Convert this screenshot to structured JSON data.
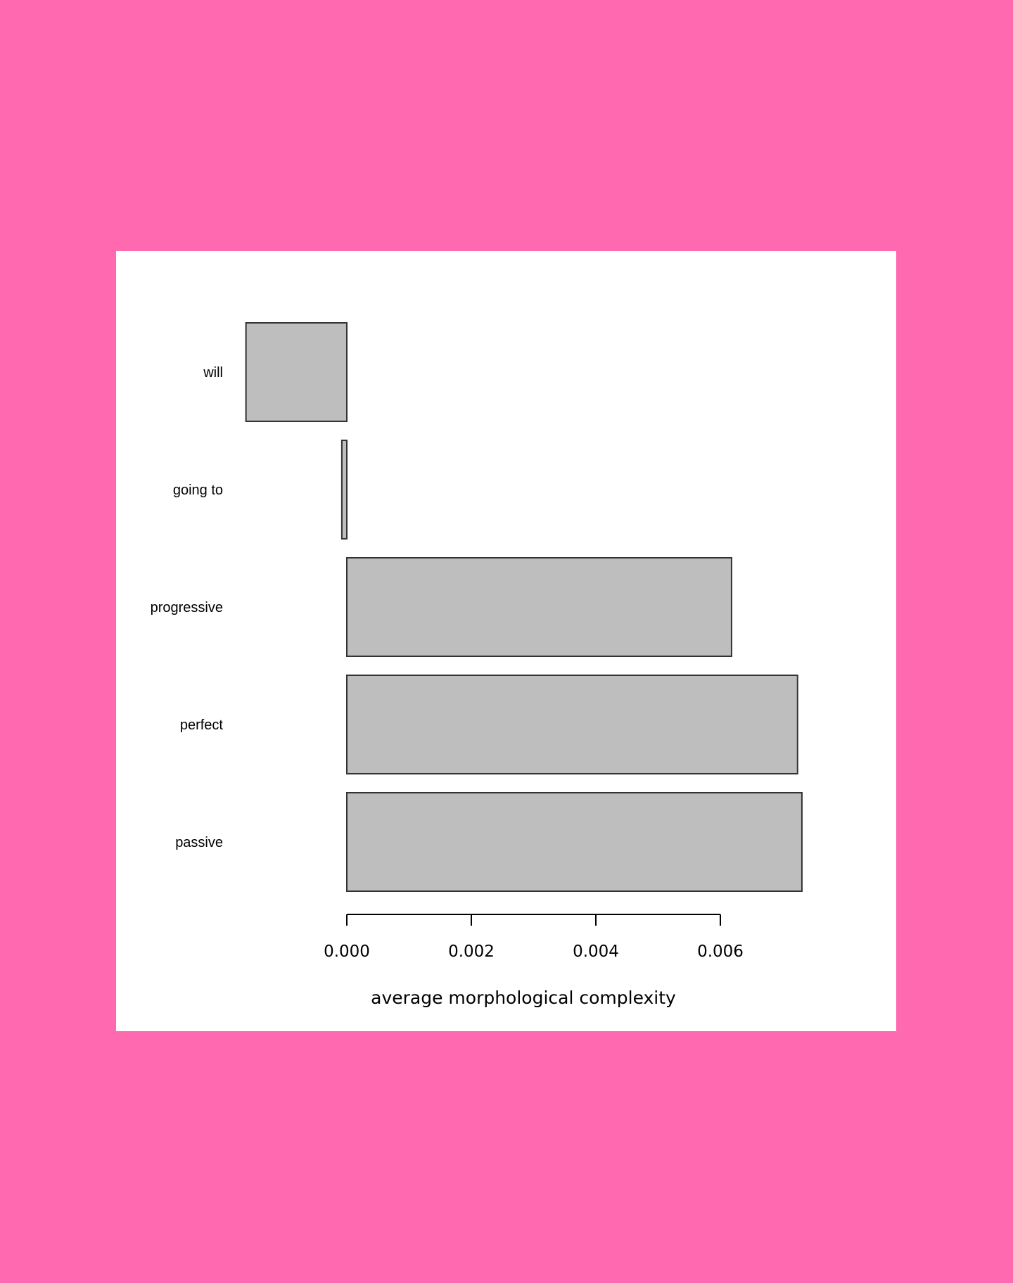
{
  "colors": {
    "page_background": "#ff69b0",
    "panel_background": "#ffffff",
    "bar_fill": "#bebebe",
    "bar_stroke": "#333333",
    "axis": "#000000"
  },
  "chart_data": {
    "type": "bar",
    "orientation": "horizontal",
    "categories": [
      "will",
      "going to",
      "progressive",
      "perfect",
      "passive"
    ],
    "values": [
      -0.00162,
      -8e-05,
      0.00618,
      0.00724,
      0.00731
    ],
    "xlabel": "average morphological complexity",
    "ylabel": "",
    "title": "",
    "xlim": [
      -0.0016,
      0.0073
    ],
    "xticks": [
      0.0,
      0.002,
      0.004,
      0.006
    ],
    "xtick_labels": [
      "0.000",
      "0.002",
      "0.004",
      "0.006"
    ],
    "grid": false,
    "legend": false
  }
}
